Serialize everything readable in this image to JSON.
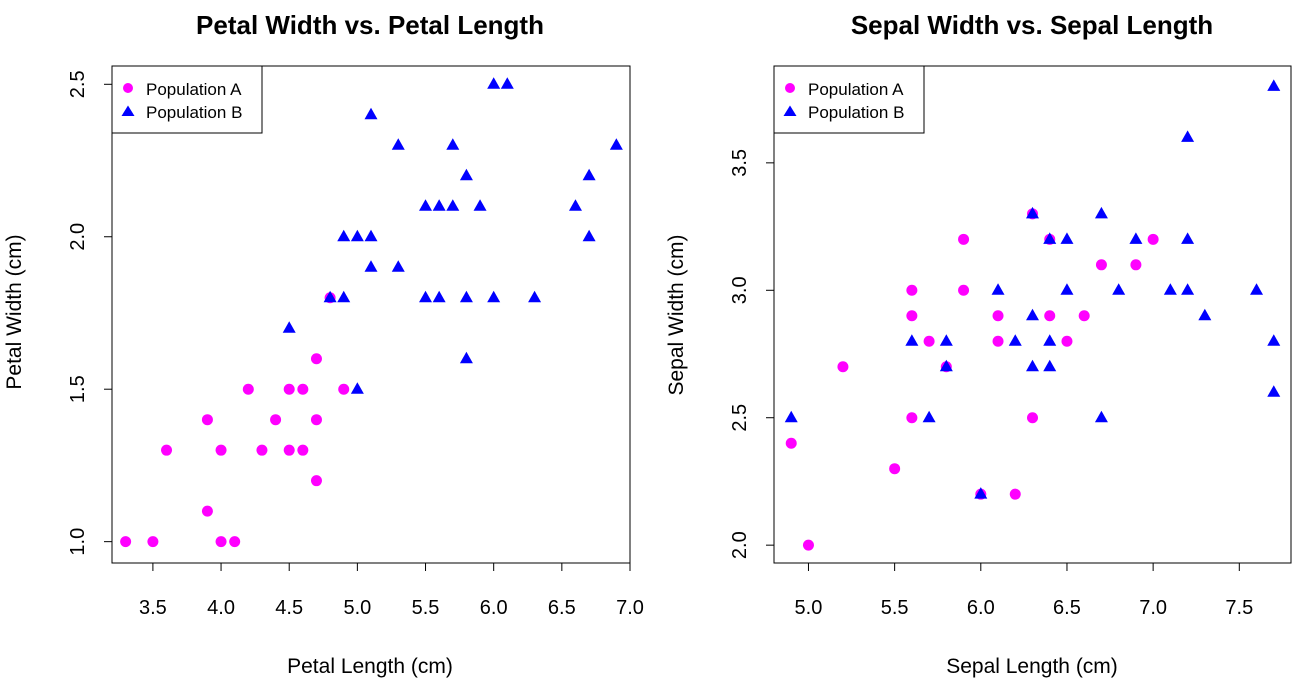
{
  "colors": {
    "population_a": "#ff00ff",
    "population_b": "#0000ff"
  },
  "chart_data": [
    {
      "type": "scatter",
      "title": "Petal Width vs. Petal Length",
      "xlabel": "Petal Length (cm)",
      "ylabel": "Petal Width (cm)",
      "xlim": [
        3.2,
        7.0
      ],
      "ylim": [
        0.93,
        2.56
      ],
      "xticks": [
        "3.5",
        "4.0",
        "4.5",
        "5.0",
        "5.5",
        "6.0",
        "6.5",
        "7.0"
      ],
      "yticks": [
        "1.0",
        "1.5",
        "2.0",
        "2.5"
      ],
      "grid": false,
      "legend": {
        "placement": "top-left",
        "entries": [
          "Population A",
          "Population B"
        ]
      },
      "series": [
        {
          "name": "Population A",
          "marker": "circle",
          "points": [
            [
              3.3,
              1.0
            ],
            [
              3.5,
              1.0
            ],
            [
              3.6,
              1.3
            ],
            [
              3.9,
              1.4
            ],
            [
              3.9,
              1.1
            ],
            [
              4.0,
              1.3
            ],
            [
              4.0,
              1.0
            ],
            [
              4.1,
              1.0
            ],
            [
              4.2,
              1.5
            ],
            [
              4.3,
              1.3
            ],
            [
              4.4,
              1.4
            ],
            [
              4.5,
              1.5
            ],
            [
              4.5,
              1.3
            ],
            [
              4.6,
              1.5
            ],
            [
              4.6,
              1.3
            ],
            [
              4.7,
              1.6
            ],
            [
              4.7,
              1.4
            ],
            [
              4.7,
              1.2
            ],
            [
              4.8,
              1.8
            ],
            [
              4.9,
              1.5
            ]
          ]
        },
        {
          "name": "Population B",
          "marker": "triangle",
          "points": [
            [
              4.5,
              1.7
            ],
            [
              4.8,
              1.8
            ],
            [
              4.9,
              2.0
            ],
            [
              4.9,
              1.8
            ],
            [
              5.0,
              2.0
            ],
            [
              5.0,
              1.5
            ],
            [
              5.1,
              2.4
            ],
            [
              5.1,
              2.0
            ],
            [
              5.1,
              1.9
            ],
            [
              5.3,
              2.3
            ],
            [
              5.3,
              1.9
            ],
            [
              5.5,
              2.1
            ],
            [
              5.5,
              1.8
            ],
            [
              5.6,
              2.1
            ],
            [
              5.6,
              1.8
            ],
            [
              5.7,
              2.3
            ],
            [
              5.7,
              2.1
            ],
            [
              5.8,
              2.2
            ],
            [
              5.8,
              1.8
            ],
            [
              5.8,
              1.6
            ],
            [
              5.9,
              2.1
            ],
            [
              6.0,
              2.5
            ],
            [
              6.0,
              1.8
            ],
            [
              6.1,
              2.5
            ],
            [
              6.3,
              1.8
            ],
            [
              6.6,
              2.1
            ],
            [
              6.7,
              2.2
            ],
            [
              6.7,
              2.0
            ],
            [
              6.9,
              2.3
            ]
          ]
        }
      ]
    },
    {
      "type": "scatter",
      "title": "Sepal Width vs. Sepal Length",
      "xlabel": "Sepal Length (cm)",
      "ylabel": "Sepal Width (cm)",
      "xlim": [
        4.8,
        7.8
      ],
      "ylim": [
        1.93,
        3.88
      ],
      "xticks": [
        "5.0",
        "5.5",
        "6.0",
        "6.5",
        "7.0",
        "7.5"
      ],
      "yticks": [
        "2.0",
        "2.5",
        "3.0",
        "3.5"
      ],
      "grid": false,
      "legend": {
        "placement": "top-left",
        "entries": [
          "Population A",
          "Population B"
        ]
      },
      "series": [
        {
          "name": "Population A",
          "marker": "circle",
          "points": [
            [
              4.9,
              2.4
            ],
            [
              5.0,
              2.0
            ],
            [
              5.2,
              2.7
            ],
            [
              5.5,
              2.3
            ],
            [
              5.6,
              3.0
            ],
            [
              5.6,
              2.9
            ],
            [
              5.6,
              2.5
            ],
            [
              5.7,
              2.8
            ],
            [
              5.8,
              2.7
            ],
            [
              5.9,
              3.2
            ],
            [
              5.9,
              3.0
            ],
            [
              6.0,
              2.2
            ],
            [
              6.1,
              2.9
            ],
            [
              6.1,
              2.8
            ],
            [
              6.2,
              2.2
            ],
            [
              6.3,
              3.3
            ],
            [
              6.3,
              2.5
            ],
            [
              6.4,
              3.2
            ],
            [
              6.4,
              2.9
            ],
            [
              6.5,
              2.8
            ],
            [
              6.6,
              2.9
            ],
            [
              6.7,
              3.1
            ],
            [
              6.9,
              3.1
            ],
            [
              7.0,
              3.2
            ]
          ]
        },
        {
          "name": "Population B",
          "marker": "triangle",
          "points": [
            [
              4.9,
              2.5
            ],
            [
              5.6,
              2.8
            ],
            [
              5.7,
              2.5
            ],
            [
              5.8,
              2.8
            ],
            [
              5.8,
              2.7
            ],
            [
              6.0,
              2.2
            ],
            [
              6.1,
              3.0
            ],
            [
              6.2,
              2.8
            ],
            [
              6.3,
              3.3
            ],
            [
              6.3,
              2.9
            ],
            [
              6.3,
              2.7
            ],
            [
              6.4,
              3.2
            ],
            [
              6.4,
              2.8
            ],
            [
              6.4,
              2.7
            ],
            [
              6.5,
              3.2
            ],
            [
              6.5,
              3.0
            ],
            [
              6.7,
              3.3
            ],
            [
              6.7,
              2.5
            ],
            [
              6.8,
              3.0
            ],
            [
              6.9,
              3.2
            ],
            [
              7.1,
              3.0
            ],
            [
              7.2,
              3.6
            ],
            [
              7.2,
              3.2
            ],
            [
              7.2,
              3.0
            ],
            [
              7.3,
              2.9
            ],
            [
              7.6,
              3.0
            ],
            [
              7.7,
              3.8
            ],
            [
              7.7,
              2.8
            ],
            [
              7.7,
              2.6
            ]
          ]
        }
      ]
    }
  ]
}
